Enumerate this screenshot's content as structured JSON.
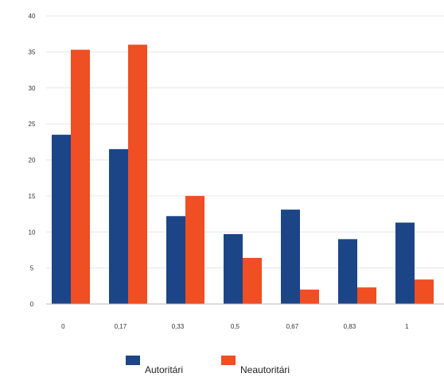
{
  "chart_data": {
    "type": "bar",
    "categories": [
      "0",
      "0,17",
      "0,33",
      "0,5",
      "0,67",
      "0,83",
      "1"
    ],
    "series": [
      {
        "name": "Autoritári",
        "color": "#1c4587",
        "values": [
          23.5,
          21.5,
          12.2,
          9.7,
          13.1,
          9.0,
          11.3
        ]
      },
      {
        "name": "Neautoritári",
        "color": "#f04e23",
        "values": [
          35.3,
          36.0,
          15.0,
          6.4,
          2.0,
          2.3,
          3.4
        ]
      }
    ],
    "ylim": [
      0,
      40
    ],
    "yticks": [
      "0",
      "5",
      "10",
      "15",
      "20",
      "25",
      "30",
      "35",
      "40"
    ],
    "grid": true,
    "legend_position": "bottom",
    "title": "",
    "xlabel": "",
    "ylabel": ""
  }
}
